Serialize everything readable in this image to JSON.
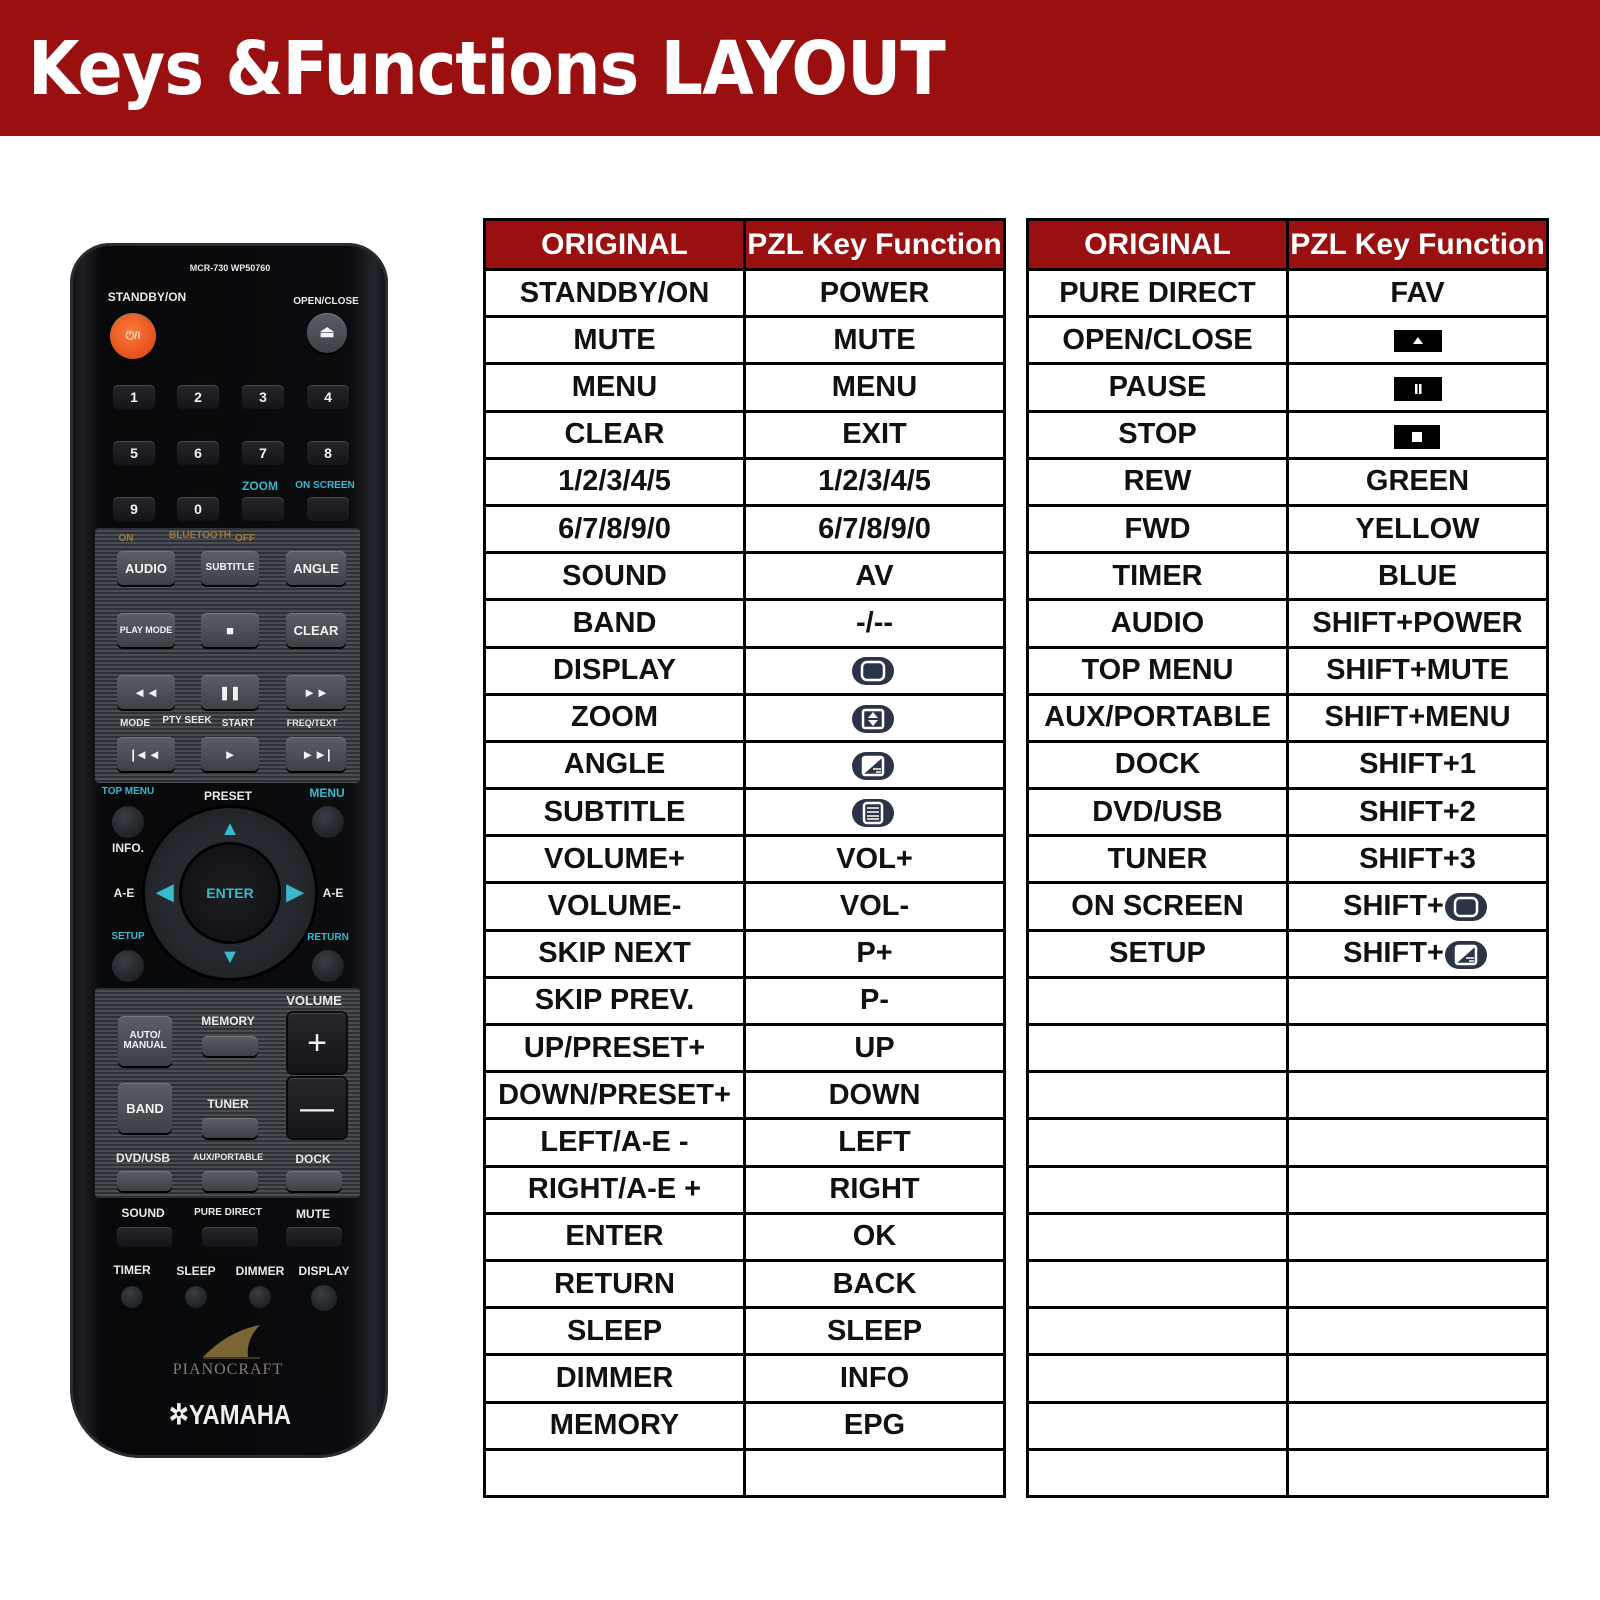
{
  "header": {
    "title": "Keys &Functions LAYOUT"
  },
  "colors": {
    "banner": "#9a0f10",
    "icon_pill": "#2b3347"
  },
  "tables": [
    {
      "headers": [
        "ORIGINAL",
        "PZL Key Function"
      ],
      "rows": [
        {
          "original": "STANDBY/ON",
          "function": "POWER"
        },
        {
          "original": "MUTE",
          "function": "MUTE"
        },
        {
          "original": "MENU",
          "function": "MENU"
        },
        {
          "original": "CLEAR",
          "function": "EXIT"
        },
        {
          "original": "1/2/3/4/5",
          "function": "1/2/3/4/5"
        },
        {
          "original": "6/7/8/9/0",
          "function": "6/7/8/9/0"
        },
        {
          "original": "SOUND",
          "function": "AV"
        },
        {
          "original": "BAND",
          "function": "-/--"
        },
        {
          "original": "DISPLAY",
          "function": "",
          "icon": "display-icon"
        },
        {
          "original": "ZOOM",
          "function": "",
          "icon": "zoom-icon"
        },
        {
          "original": "ANGLE",
          "function": "",
          "icon": "angle-icon"
        },
        {
          "original": "SUBTITLE",
          "function": "",
          "icon": "subtitle-icon"
        },
        {
          "original": "VOLUME+",
          "function": "VOL+"
        },
        {
          "original": "VOLUME-",
          "function": "VOL-"
        },
        {
          "original": "SKIP NEXT",
          "function": "P+"
        },
        {
          "original": "SKIP PREV.",
          "function": "P-"
        },
        {
          "original": "UP/PRESET+",
          "function": "UP"
        },
        {
          "original": "DOWN/PRESET+",
          "function": "DOWN"
        },
        {
          "original": "LEFT/A-E -",
          "function": "LEFT"
        },
        {
          "original": "RIGHT/A-E +",
          "function": "RIGHT"
        },
        {
          "original": "ENTER",
          "function": "OK"
        },
        {
          "original": "RETURN",
          "function": "BACK"
        },
        {
          "original": "SLEEP",
          "function": "SLEEP"
        },
        {
          "original": "DIMMER",
          "function": "INFO"
        },
        {
          "original": "MEMORY",
          "function": "EPG"
        },
        {
          "original": "",
          "function": ""
        }
      ]
    },
    {
      "headers": [
        "ORIGINAL",
        "PZL Key Function"
      ],
      "rows": [
        {
          "original": "PURE DIRECT",
          "function": "FAV"
        },
        {
          "original": "OPEN/CLOSE",
          "function": "",
          "icon": "eject-icon"
        },
        {
          "original": "PAUSE",
          "function": "",
          "icon": "pause-icon"
        },
        {
          "original": "STOP",
          "function": "",
          "icon": "stop-icon"
        },
        {
          "original": "REW",
          "function": "GREEN"
        },
        {
          "original": "FWD",
          "function": "YELLOW"
        },
        {
          "original": "TIMER",
          "function": "BLUE"
        },
        {
          "original": "AUDIO",
          "function": "SHIFT+POWER"
        },
        {
          "original": "TOP MENU",
          "function": "SHIFT+MUTE"
        },
        {
          "original": "AUX/PORTABLE",
          "function": "SHIFT+MENU"
        },
        {
          "original": "DOCK",
          "function": "SHIFT+1"
        },
        {
          "original": "DVD/USB",
          "function": "SHIFT+2"
        },
        {
          "original": "TUNER",
          "function": "SHIFT+3"
        },
        {
          "original": "ON SCREEN",
          "function": "SHIFT+",
          "icon": "display-icon"
        },
        {
          "original": "SETUP",
          "function": "SHIFT+",
          "icon": "angle-icon"
        },
        {
          "original": "",
          "function": ""
        },
        {
          "original": "",
          "function": ""
        },
        {
          "original": "",
          "function": ""
        },
        {
          "original": "",
          "function": ""
        },
        {
          "original": "",
          "function": ""
        },
        {
          "original": "",
          "function": ""
        },
        {
          "original": "",
          "function": ""
        },
        {
          "original": "",
          "function": ""
        },
        {
          "original": "",
          "function": ""
        },
        {
          "original": "",
          "function": ""
        },
        {
          "original": "",
          "function": ""
        }
      ]
    }
  ],
  "remote": {
    "model": "MCR-730 WP50760",
    "standby": "STANDBY/ON",
    "power_glyph": "⏻/I",
    "open_close": "OPEN/CLOSE",
    "numbers": [
      "1",
      "2",
      "3",
      "4",
      "5",
      "6",
      "7",
      "8",
      "9",
      "0"
    ],
    "zoom": "ZOOM",
    "on_screen": "ON SCREEN",
    "bt_on": "ON",
    "bluetooth": "BLUETOOTH",
    "bt_off": "OFF",
    "audio": "AUDIO",
    "subtitle": "SUBTITLE",
    "angle": "ANGLE",
    "play_mode": "PLAY MODE",
    "clear": "CLEAR",
    "mode": "MODE",
    "pty_seek": "PTY SEEK",
    "start": "START",
    "freq_text": "FREQ/TEXT",
    "top_menu": "TOP MENU",
    "preset": "PRESET",
    "menu": "MENU",
    "info": "INFO.",
    "ae": "A-E",
    "setup": "SETUP",
    "return": "RETURN",
    "enter": "ENTER",
    "volume": "VOLUME",
    "memory": "MEMORY",
    "auto_manual": "AUTO/ MANUAL",
    "band": "BAND",
    "tuner": "TUNER",
    "dvd_usb": "DVD/USB",
    "aux_portable": "AUX/PORTABLE",
    "dock": "DOCK",
    "sound": "SOUND",
    "pure_direct": "PURE DIRECT",
    "mute": "MUTE",
    "timer": "TIMER",
    "sleep": "SLEEP",
    "dimmer": "DIMMER",
    "display": "DISPLAY",
    "brand_series": "PIANOCRAFT",
    "brand": "YAMAHA"
  }
}
